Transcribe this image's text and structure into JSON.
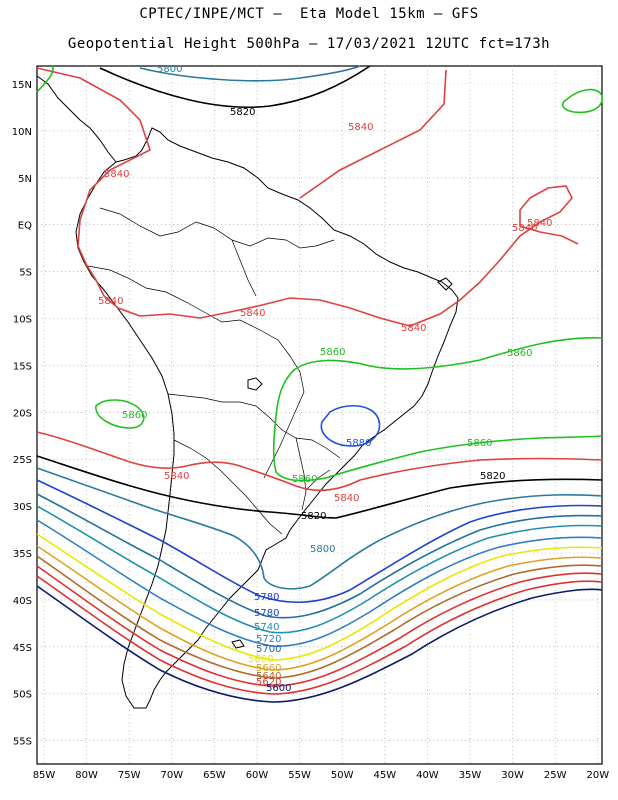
{
  "header": {
    "line1": "CPTEC/INPE/MCT –  Eta Model 15km – GFS",
    "line2": "Geopotential Height 500hPa – 17/03/2021 12UTC fct=173h"
  },
  "lat_labels": [
    "15N",
    "10N",
    "5N",
    "EQ",
    "5S",
    "10S",
    "15S",
    "20S",
    "25S",
    "30S",
    "35S",
    "40S",
    "45S",
    "50S",
    "55S"
  ],
  "lon_labels": [
    "85W",
    "80W",
    "75W",
    "70W",
    "65W",
    "60W",
    "55W",
    "50W",
    "45W",
    "40W",
    "35W",
    "30W",
    "25W",
    "20W"
  ],
  "contour_labels": {
    "c5800_top": "5800",
    "c5820_top": "5820",
    "c5840_a": "5840",
    "c5840_b": "5840",
    "c5840_c": "5840",
    "c5840_d": "5840",
    "c5840_e": "5840",
    "c5840_f": "5840",
    "c5840_g": "5840",
    "c5840_h": "5840",
    "c5840_i": "5840",
    "c5860_a": "5860",
    "c5860_b": "5860",
    "c5860_c": "5860",
    "c5860_d": "5860",
    "c5860_e": "5860",
    "c5880": "5880",
    "c5820_mid": "5820",
    "c5820_e": "5820",
    "c5800_mid": "5800",
    "c5780_a": "5780",
    "c5780_b": "5780",
    "c5740": "5740",
    "c5720": "5720",
    "c5700": "5700",
    "c5680": "5680",
    "c5660": "5660",
    "c5640": "5640",
    "c5620": "5620",
    "c5600": "5600"
  },
  "colors": {
    "c5600": "#0a1a6e",
    "c5620": "#e03030",
    "c5640": "#b06a2a",
    "c5660": "#e0a020",
    "c5680": "#e8e800",
    "c5700": "#3060a0",
    "c5720": "#3080c0",
    "c5740": "#2090b0",
    "c5760": "#2070a0",
    "c5780": "#2040d0",
    "c5800": "#2a7aa0",
    "c5820": "#000000",
    "c5840": "#e04040",
    "c5860": "#20c020",
    "c5880": "#2050e0"
  }
}
